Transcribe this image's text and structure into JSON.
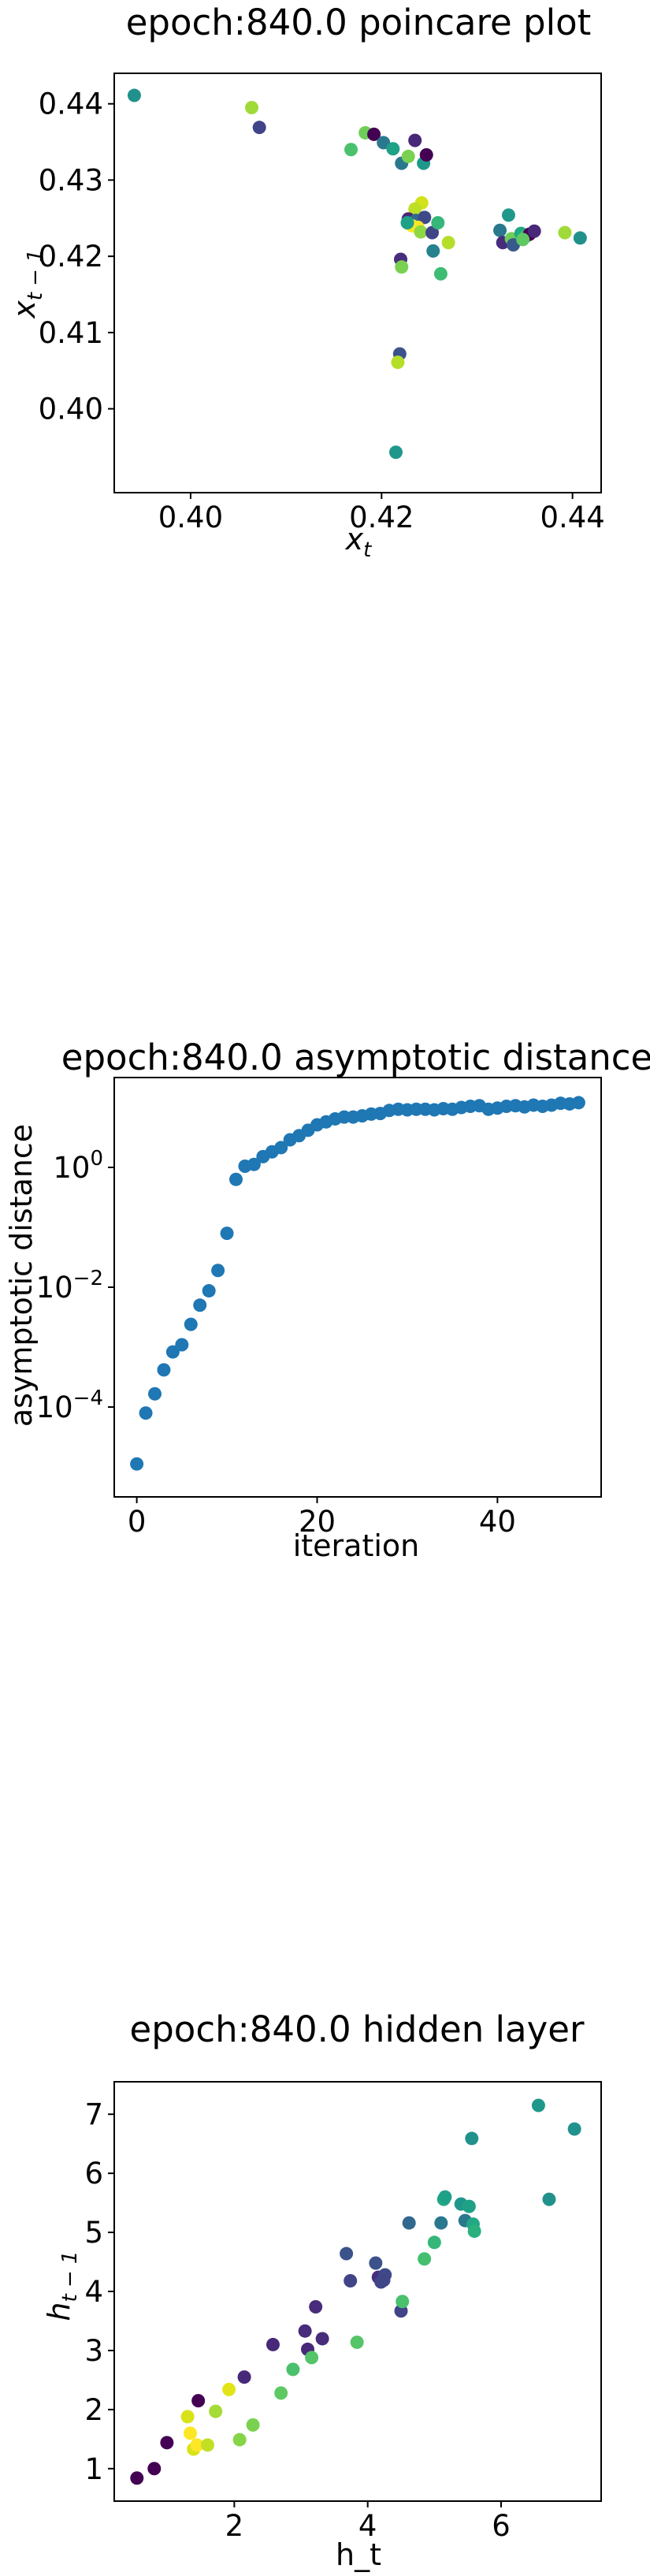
{
  "chart_data": [
    {
      "type": "scatter",
      "title": "epoch:840.0 poincare plot",
      "xlabel": "x_t",
      "ylabel": "x_{t-1}",
      "xlim": [
        0.392,
        0.443
      ],
      "ylim": [
        0.389,
        0.444
      ],
      "xticks": [
        0.4,
        0.42,
        0.44
      ],
      "xtick_labels": [
        "0.40",
        "0.42",
        "0.44"
      ],
      "yticks": [
        0.4,
        0.41,
        0.42,
        0.43,
        0.44
      ],
      "ytick_labels": [
        "0.40",
        "0.41",
        "0.42",
        "0.43",
        "0.44"
      ],
      "points": [
        {
          "x": 0.3941,
          "y": 0.4411,
          "color": "#21918c"
        },
        {
          "x": 0.4064,
          "y": 0.4395,
          "color": "#a0da39"
        },
        {
          "x": 0.4072,
          "y": 0.4369,
          "color": "#414487"
        },
        {
          "x": 0.4168,
          "y": 0.434,
          "color": "#4ac16d"
        },
        {
          "x": 0.4183,
          "y": 0.4362,
          "color": "#6ece58"
        },
        {
          "x": 0.4192,
          "y": 0.436,
          "color": "#440154"
        },
        {
          "x": 0.4202,
          "y": 0.4349,
          "color": "#2a788e"
        },
        {
          "x": 0.4212,
          "y": 0.4341,
          "color": "#1fa187"
        },
        {
          "x": 0.4221,
          "y": 0.4322,
          "color": "#2a788e"
        },
        {
          "x": 0.4228,
          "y": 0.4331,
          "color": "#7ad151"
        },
        {
          "x": 0.4235,
          "y": 0.4352,
          "color": "#482878"
        },
        {
          "x": 0.4244,
          "y": 0.4322,
          "color": "#1f988b"
        },
        {
          "x": 0.4247,
          "y": 0.4333,
          "color": "#440154"
        },
        {
          "x": 0.4242,
          "y": 0.427,
          "color": "#d2e21b"
        },
        {
          "x": 0.4235,
          "y": 0.4262,
          "color": "#bddf26"
        },
        {
          "x": 0.4228,
          "y": 0.4249,
          "color": "#482878"
        },
        {
          "x": 0.4236,
          "y": 0.4247,
          "color": "#31688e"
        },
        {
          "x": 0.4245,
          "y": 0.4251,
          "color": "#3e4989"
        },
        {
          "x": 0.4232,
          "y": 0.424,
          "color": "#fde725"
        },
        {
          "x": 0.4238,
          "y": 0.4238,
          "color": "#fde725"
        },
        {
          "x": 0.4227,
          "y": 0.4244,
          "color": "#1fa187"
        },
        {
          "x": 0.4241,
          "y": 0.4232,
          "color": "#8fd744"
        },
        {
          "x": 0.4253,
          "y": 0.4231,
          "color": "#414487"
        },
        {
          "x": 0.4259,
          "y": 0.4244,
          "color": "#35b779"
        },
        {
          "x": 0.427,
          "y": 0.4218,
          "color": "#b5de2b"
        },
        {
          "x": 0.4254,
          "y": 0.4207,
          "color": "#26828e"
        },
        {
          "x": 0.422,
          "y": 0.4196,
          "color": "#472d7b"
        },
        {
          "x": 0.4221,
          "y": 0.4186,
          "color": "#7ad151"
        },
        {
          "x": 0.4262,
          "y": 0.4177,
          "color": "#3fbc73"
        },
        {
          "x": 0.4219,
          "y": 0.4072,
          "color": "#3b528b"
        },
        {
          "x": 0.4217,
          "y": 0.4061,
          "color": "#b5de2b"
        },
        {
          "x": 0.4215,
          "y": 0.3943,
          "color": "#1f988b"
        },
        {
          "x": 0.4324,
          "y": 0.4234,
          "color": "#2a788e"
        },
        {
          "x": 0.4333,
          "y": 0.4254,
          "color": "#1f988b"
        },
        {
          "x": 0.4327,
          "y": 0.4218,
          "color": "#472d7b"
        },
        {
          "x": 0.4336,
          "y": 0.4223,
          "color": "#6ece58"
        },
        {
          "x": 0.4338,
          "y": 0.4215,
          "color": "#38598c"
        },
        {
          "x": 0.4346,
          "y": 0.423,
          "color": "#22a884"
        },
        {
          "x": 0.4351,
          "y": 0.4226,
          "color": "#3fbc73"
        },
        {
          "x": 0.4355,
          "y": 0.4229,
          "color": "#440154"
        },
        {
          "x": 0.436,
          "y": 0.4233,
          "color": "#482878"
        },
        {
          "x": 0.4348,
          "y": 0.4222,
          "color": "#5ec962"
        },
        {
          "x": 0.4392,
          "y": 0.4231,
          "color": "#a0da39"
        },
        {
          "x": 0.4408,
          "y": 0.4224,
          "color": "#21918c"
        }
      ]
    },
    {
      "type": "scatter",
      "title": "epoch:840.0 asymptotic distance",
      "xlabel": "iteration",
      "ylabel": "asymptotic distance",
      "yscale": "log",
      "xlim": [
        -2.5,
        51.5
      ],
      "ylim_log10": [
        -5.5,
        1.5
      ],
      "xticks": [
        0,
        20,
        40
      ],
      "xtick_labels": [
        "0",
        "20",
        "40"
      ],
      "ytick_bases": [
        "10",
        "10",
        "10"
      ],
      "ytick_exponents": [
        "−4",
        "−2",
        "0"
      ],
      "ytick_values_log10": [
        -4,
        -2,
        0
      ],
      "color": "#1f77b4",
      "x": [
        0,
        1,
        2,
        3,
        4,
        5,
        6,
        7,
        8,
        9,
        10,
        11,
        12,
        13,
        14,
        15,
        16,
        17,
        18,
        19,
        20,
        21,
        22,
        23,
        24,
        25,
        26,
        27,
        28,
        29,
        30,
        31,
        32,
        33,
        34,
        35,
        36,
        37,
        38,
        39,
        40,
        41,
        42,
        43,
        44,
        45,
        46,
        47,
        48,
        49
      ],
      "y_log10": [
        -4.95,
        -4.1,
        -3.78,
        -3.38,
        -3.08,
        -2.96,
        -2.62,
        -2.3,
        -2.06,
        -1.72,
        -1.1,
        -0.2,
        0.02,
        0.05,
        0.18,
        0.26,
        0.33,
        0.46,
        0.53,
        0.62,
        0.71,
        0.76,
        0.81,
        0.84,
        0.84,
        0.86,
        0.89,
        0.9,
        0.95,
        0.97,
        0.96,
        0.97,
        0.97,
        0.96,
        0.98,
        0.97,
        1.0,
        1.02,
        1.03,
        0.97,
        0.99,
        1.02,
        1.03,
        1.01,
        1.04,
        1.02,
        1.04,
        1.07,
        1.06,
        1.08
      ]
    },
    {
      "type": "scatter",
      "title": "epoch:840.0 hidden layer",
      "xlabel": "h_t",
      "ylabel": "h_{t-1}",
      "xlim": [
        0.2,
        7.5
      ],
      "ylim": [
        0.45,
        7.55
      ],
      "xticks": [
        2,
        4,
        6
      ],
      "xtick_labels": [
        "2",
        "4",
        "6"
      ],
      "yticks": [
        1,
        2,
        3,
        4,
        5,
        6,
        7
      ],
      "ytick_labels": [
        "1",
        "2",
        "3",
        "4",
        "5",
        "6",
        "7"
      ],
      "points": [
        {
          "x": 0.54,
          "y": 0.84,
          "color": "#440154"
        },
        {
          "x": 0.8,
          "y": 1.0,
          "color": "#440154"
        },
        {
          "x": 0.99,
          "y": 1.44,
          "color": "#440154"
        },
        {
          "x": 1.3,
          "y": 1.88,
          "color": "#d8e219"
        },
        {
          "x": 1.34,
          "y": 1.6,
          "color": "#fde725"
        },
        {
          "x": 1.39,
          "y": 1.33,
          "color": "#d8e219"
        },
        {
          "x": 1.44,
          "y": 1.4,
          "color": "#fde725"
        },
        {
          "x": 1.46,
          "y": 2.15,
          "color": "#440154"
        },
        {
          "x": 1.6,
          "y": 1.4,
          "color": "#c2df23"
        },
        {
          "x": 1.72,
          "y": 1.97,
          "color": "#a5db36"
        },
        {
          "x": 1.92,
          "y": 2.34,
          "color": "#e2e418"
        },
        {
          "x": 2.08,
          "y": 1.49,
          "color": "#86d549"
        },
        {
          "x": 2.15,
          "y": 2.55,
          "color": "#482878"
        },
        {
          "x": 2.28,
          "y": 1.74,
          "color": "#7ad151"
        },
        {
          "x": 2.58,
          "y": 3.1,
          "color": "#482878"
        },
        {
          "x": 2.7,
          "y": 2.28,
          "color": "#5ec962"
        },
        {
          "x": 2.88,
          "y": 2.68,
          "color": "#4ac16d"
        },
        {
          "x": 3.06,
          "y": 3.33,
          "color": "#472d7b"
        },
        {
          "x": 3.1,
          "y": 3.02,
          "color": "#482878"
        },
        {
          "x": 3.16,
          "y": 2.88,
          "color": "#54c568"
        },
        {
          "x": 3.22,
          "y": 3.74,
          "color": "#472d7b"
        },
        {
          "x": 3.32,
          "y": 3.2,
          "color": "#472d7b"
        },
        {
          "x": 3.68,
          "y": 4.64,
          "color": "#3b528b"
        },
        {
          "x": 3.74,
          "y": 4.18,
          "color": "#414487"
        },
        {
          "x": 3.84,
          "y": 3.14,
          "color": "#54c568"
        },
        {
          "x": 4.12,
          "y": 4.48,
          "color": "#3b528b"
        },
        {
          "x": 4.16,
          "y": 4.24,
          "color": "#472d7b"
        },
        {
          "x": 4.2,
          "y": 4.16,
          "color": "#414487"
        },
        {
          "x": 4.26,
          "y": 4.28,
          "color": "#3e4989"
        },
        {
          "x": 4.24,
          "y": 4.19,
          "color": "#404688"
        },
        {
          "x": 4.5,
          "y": 3.67,
          "color": "#414487"
        },
        {
          "x": 4.52,
          "y": 3.83,
          "color": "#4ac16d"
        },
        {
          "x": 4.62,
          "y": 5.16,
          "color": "#31688e"
        },
        {
          "x": 4.85,
          "y": 4.55,
          "color": "#44bf70"
        },
        {
          "x": 5.0,
          "y": 4.83,
          "color": "#35b779"
        },
        {
          "x": 5.1,
          "y": 5.16,
          "color": "#2a788e"
        },
        {
          "x": 5.14,
          "y": 5.56,
          "color": "#22a884"
        },
        {
          "x": 5.16,
          "y": 5.6,
          "color": "#1fa187"
        },
        {
          "x": 5.4,
          "y": 5.48,
          "color": "#1f988b"
        },
        {
          "x": 5.46,
          "y": 5.2,
          "color": "#2a788e"
        },
        {
          "x": 5.52,
          "y": 5.44,
          "color": "#1fa187"
        },
        {
          "x": 5.56,
          "y": 6.59,
          "color": "#21918c"
        },
        {
          "x": 5.58,
          "y": 5.14,
          "color": "#22a884"
        },
        {
          "x": 5.6,
          "y": 5.02,
          "color": "#2ab07f"
        },
        {
          "x": 6.56,
          "y": 7.15,
          "color": "#1f988b"
        },
        {
          "x": 6.72,
          "y": 5.56,
          "color": "#21918c"
        },
        {
          "x": 7.1,
          "y": 6.75,
          "color": "#21918c"
        }
      ]
    }
  ]
}
